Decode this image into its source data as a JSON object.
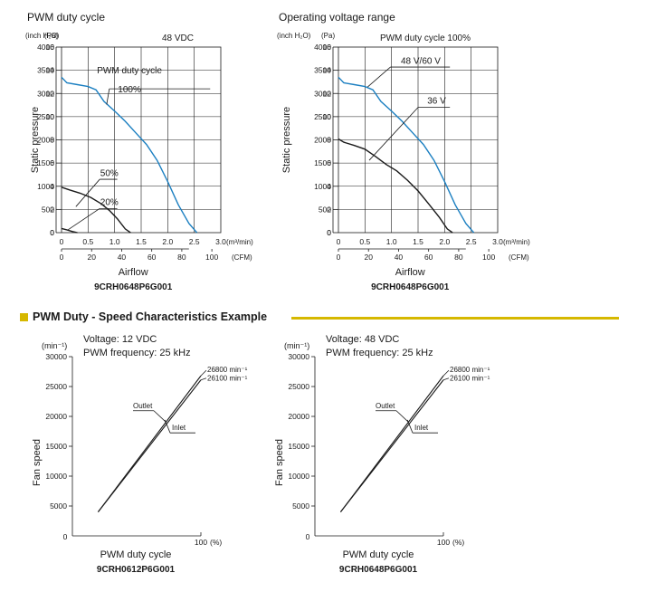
{
  "section": {
    "title": "PWM Duty - Speed Characteristics Example"
  },
  "chart_data": [
    {
      "id": "pq-pwm",
      "type": "line",
      "title": "PWM duty cycle",
      "ylabel": "Static pressure",
      "xlabel": "Airflow",
      "model": "9CRH0648P6G001",
      "top_note": "48 VDC",
      "y_unit_left": "(inch H₂O)",
      "y_unit_right": "(Pa)",
      "x_unit_top": "(m³/min)",
      "x_unit_bottom": "(CFM)",
      "xlim": [
        0,
        3.0
      ],
      "ylim": [
        0,
        4000
      ],
      "x_ticks_top": [
        "0",
        "0.5",
        "1.0",
        "1.5",
        "2.0",
        "2.5",
        "3.0"
      ],
      "x_ticks_bottom": [
        "0",
        "20",
        "40",
        "60",
        "80",
        "100"
      ],
      "y_ticks_pa": [
        "0",
        "500",
        "1000",
        "1500",
        "2000",
        "2500",
        "3000",
        "3500",
        "4000"
      ],
      "y_ticks_inch": [
        "0",
        "2",
        "4",
        "6",
        "8",
        "10",
        "12",
        "14",
        "16"
      ],
      "series": [
        {
          "name": "PWM duty cycle 100%",
          "color": "#1b7fc1",
          "x": [
            0,
            0.1,
            0.3,
            0.5,
            0.65,
            0.8,
            1.0,
            1.2,
            1.4,
            1.6,
            1.8,
            2.0,
            2.2,
            2.4,
            2.55
          ],
          "y": [
            3350,
            3230,
            3190,
            3150,
            3080,
            2830,
            2620,
            2400,
            2150,
            1900,
            1560,
            1100,
            600,
            200,
            0
          ]
        },
        {
          "name": "50%",
          "color": "#1a1a1a",
          "x": [
            0,
            0.15,
            0.35,
            0.55,
            0.75,
            0.9,
            1.05,
            1.2,
            1.3
          ],
          "y": [
            980,
            920,
            850,
            760,
            620,
            480,
            300,
            80,
            0
          ]
        },
        {
          "name": "20%",
          "color": "#1a1a1a",
          "x": [
            0,
            0.1,
            0.2,
            0.3
          ],
          "y": [
            90,
            60,
            25,
            0
          ]
        }
      ],
      "labels": [
        "PWM duty cycle",
        "100%",
        "50%",
        "20%"
      ]
    },
    {
      "id": "pq-voltage",
      "type": "line",
      "title": "Operating voltage range",
      "ylabel": "Static pressure",
      "xlabel": "Airflow",
      "model": "9CRH0648P6G001",
      "top_note": "PWM duty cycle 100%",
      "y_unit_left": "(inch H₂O)",
      "y_unit_right": "(Pa)",
      "x_unit_top": "(m³/min)",
      "x_unit_bottom": "(CFM)",
      "xlim": [
        0,
        3.0
      ],
      "ylim": [
        0,
        4000
      ],
      "x_ticks_top": [
        "0",
        "0.5",
        "1.0",
        "1.5",
        "2.0",
        "2.5",
        "3.0"
      ],
      "x_ticks_bottom": [
        "0",
        "20",
        "40",
        "60",
        "80",
        "100"
      ],
      "y_ticks_pa": [
        "0",
        "500",
        "1000",
        "1500",
        "2000",
        "2500",
        "3000",
        "3500",
        "4000"
      ],
      "y_ticks_inch": [
        "0",
        "2",
        "4",
        "6",
        "8",
        "10",
        "12",
        "14",
        "16"
      ],
      "series": [
        {
          "name": "48 V/60 V",
          "color": "#1b7fc1",
          "x": [
            0,
            0.1,
            0.3,
            0.5,
            0.65,
            0.8,
            1.0,
            1.2,
            1.4,
            1.6,
            1.8,
            2.0,
            2.2,
            2.4,
            2.55
          ],
          "y": [
            3350,
            3230,
            3190,
            3150,
            3080,
            2830,
            2620,
            2400,
            2150,
            1900,
            1560,
            1100,
            600,
            200,
            0
          ]
        },
        {
          "name": "36 V",
          "color": "#1a1a1a",
          "x": [
            0,
            0.1,
            0.3,
            0.5,
            0.7,
            0.9,
            1.1,
            1.3,
            1.5,
            1.7,
            1.9,
            2.05,
            2.15
          ],
          "y": [
            2020,
            1950,
            1880,
            1800,
            1640,
            1470,
            1330,
            1130,
            900,
            620,
            330,
            80,
            0
          ]
        }
      ],
      "labels": [
        "48 V/60 V",
        "36 V"
      ]
    },
    {
      "id": "speed-12v",
      "type": "line",
      "ylabel": "Fan speed",
      "xlabel": "PWM duty cycle",
      "model": "9CRH0612P6G001",
      "notes": [
        "Voltage: 12 VDC",
        "PWM frequency: 25 kHz"
      ],
      "y_unit": "(min⁻¹)",
      "x_unit": "(%)",
      "xlim": [
        0,
        100
      ],
      "ylim": [
        0,
        30000
      ],
      "x_ticks": [
        "0",
        "100"
      ],
      "y_ticks": [
        "30000",
        "25000",
        "20000",
        "15000",
        "10000",
        "5000"
      ],
      "series": [
        {
          "name": "Outlet",
          "color": "#1a1a1a",
          "x": [
            20,
            100
          ],
          "y": [
            4000,
            26800
          ]
        },
        {
          "name": "Inlet",
          "color": "#1a1a1a",
          "x": [
            20,
            100
          ],
          "y": [
            4000,
            26100
          ]
        }
      ],
      "end_labels": [
        "26800 min⁻¹",
        "26100 min⁻¹"
      ]
    },
    {
      "id": "speed-48v",
      "type": "line",
      "ylabel": "Fan speed",
      "xlabel": "PWM duty cycle",
      "model": "9CRH0648P6G001",
      "notes": [
        "Voltage: 48 VDC",
        "PWM frequency: 25 kHz"
      ],
      "y_unit": "(min⁻¹)",
      "x_unit": "(%)",
      "xlim": [
        0,
        100
      ],
      "ylim": [
        0,
        30000
      ],
      "x_ticks": [
        "0",
        "100"
      ],
      "y_ticks": [
        "30000",
        "25000",
        "20000",
        "15000",
        "10000",
        "5000"
      ],
      "series": [
        {
          "name": "Outlet",
          "color": "#1a1a1a",
          "x": [
            20,
            100
          ],
          "y": [
            4000,
            26800
          ]
        },
        {
          "name": "Inlet",
          "color": "#1a1a1a",
          "x": [
            20,
            100
          ],
          "y": [
            4000,
            26100
          ]
        }
      ],
      "end_labels": [
        "26800 min⁻¹",
        "26100 min⁻¹"
      ]
    }
  ]
}
